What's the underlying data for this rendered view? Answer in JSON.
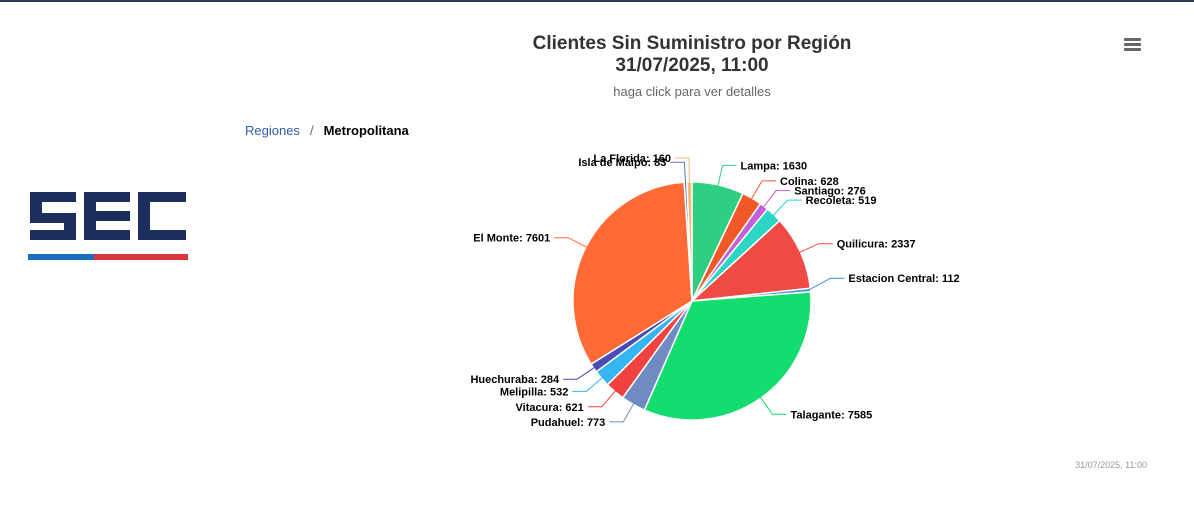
{
  "header": {
    "title_line1": "Clientes Sin Suministro por Región",
    "title_line2": "31/07/2025, 11:00",
    "subtitle": "haga click para ver detalles",
    "menu_icon": "hamburger-menu-icon"
  },
  "breadcrumb": {
    "root": "Regiones",
    "separator": "/",
    "current": "Metropolitana"
  },
  "logo": {
    "name": "sec-logo",
    "text": "SEC",
    "colors": [
      "#1c2e5b",
      "#1c6fc0",
      "#d9363e"
    ]
  },
  "credits": "31/07/2025, 11:00",
  "chart_data": {
    "type": "pie",
    "title": "Clientes Sin Suministro por Región",
    "subtitle": "haga click para ver detalles",
    "start_angle_deg": 0,
    "slices": [
      {
        "name": "Lampa",
        "value": 1630,
        "color": "#2ecf80"
      },
      {
        "name": "Colina",
        "value": 628,
        "color": "#f15a28"
      },
      {
        "name": "Santiago",
        "value": 276,
        "color": "#c45fd8"
      },
      {
        "name": "Recoleta",
        "value": 519,
        "color": "#2bd6c5"
      },
      {
        "name": "Quilicura",
        "value": 2337,
        "color": "#f04a45"
      },
      {
        "name": "Estacion Central",
        "value": 112,
        "color": "#3b8fd8"
      },
      {
        "name": "Talagante",
        "value": 7585,
        "color": "#12dd6e"
      },
      {
        "name": "Pudahuel",
        "value": 773,
        "color": "#6f8bc2"
      },
      {
        "name": "Vitacura",
        "value": 621,
        "color": "#f0433f"
      },
      {
        "name": "Melipilla",
        "value": 532,
        "color": "#35b5f2"
      },
      {
        "name": "Huechuraba",
        "value": 284,
        "color": "#4a4ab8"
      },
      {
        "name": "El Monte",
        "value": 7601,
        "color": "#ff6a35"
      },
      {
        "name": "Isla de Maipo",
        "value": 83,
        "color": "#5a78b8"
      },
      {
        "name": "La Florida",
        "value": 160,
        "color": "#f5b97a"
      }
    ]
  }
}
